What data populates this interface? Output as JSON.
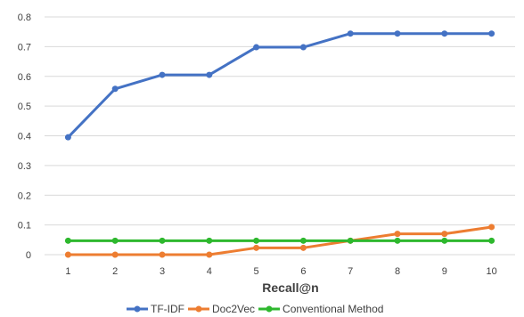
{
  "chart_data": {
    "type": "line",
    "title": "",
    "xlabel": "Recall@n",
    "ylabel": "",
    "categories": [
      "1",
      "2",
      "3",
      "4",
      "5",
      "6",
      "7",
      "8",
      "9",
      "10"
    ],
    "ylim": [
      0,
      0.8
    ],
    "yticks": [
      "0",
      "0.1",
      "0.2",
      "0.3",
      "0.4",
      "0.5",
      "0.6",
      "0.7",
      "0.8"
    ],
    "grid": true,
    "legend": "bottom",
    "series": [
      {
        "name": "TF-IDF",
        "color": "#4472c4",
        "values": [
          0.395,
          0.558,
          0.605,
          0.605,
          0.698,
          0.698,
          0.744,
          0.744,
          0.744,
          0.744
        ]
      },
      {
        "name": "Doc2Vec",
        "color": "#ed7d31",
        "values": [
          0.0,
          0.0,
          0.0,
          0.0,
          0.023,
          0.023,
          0.047,
          0.07,
          0.07,
          0.093
        ]
      },
      {
        "name": "Conventional Method",
        "color": "#2eb82e",
        "values": [
          0.047,
          0.047,
          0.047,
          0.047,
          0.047,
          0.047,
          0.047,
          0.047,
          0.047,
          0.047
        ]
      }
    ]
  }
}
